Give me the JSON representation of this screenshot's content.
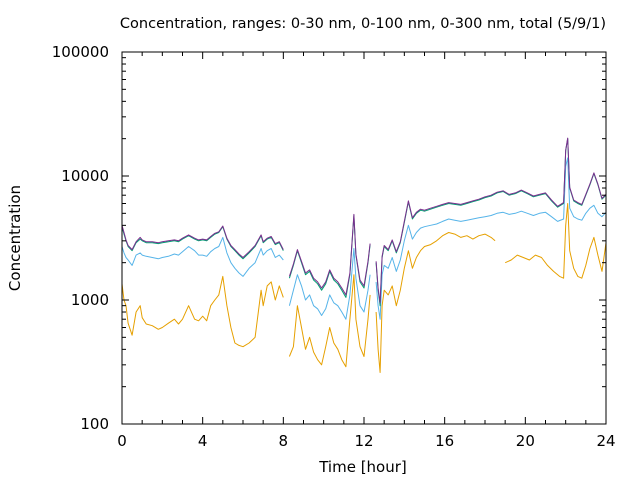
{
  "chart_data": {
    "type": "line",
    "title": "Concentration, ranges: 0-30 nm, 0-100 nm, 0-300 nm, total (5/9/1)",
    "xlabel": "Time [hour]",
    "ylabel": "Concentration",
    "xlim": [
      0,
      24
    ],
    "ylim": [
      100,
      100000
    ],
    "yscale": "log",
    "grid": false,
    "legend": "none",
    "x_ticks": [
      0,
      4,
      8,
      12,
      16,
      20,
      24
    ],
    "x_tick_labels": [
      "0",
      "4",
      "8",
      "12",
      "16",
      "20",
      "24"
    ],
    "y_ticks": [
      100,
      1000,
      10000,
      100000
    ],
    "y_tick_labels": [
      "100",
      "1000",
      "10000",
      "100000"
    ],
    "series": [
      {
        "color": "#e6a000",
        "x": [
          0,
          0.1,
          0.2,
          0.3,
          0.5,
          0.7,
          0.9,
          1.0,
          1.2,
          1.5,
          1.8,
          2.0,
          2.3,
          2.6,
          2.8,
          3.0,
          3.3,
          3.6,
          3.8,
          4.0,
          4.2,
          4.4,
          4.6,
          4.8,
          5.0,
          5.2,
          5.4,
          5.6,
          5.8,
          6.0,
          6.3,
          6.6,
          6.9,
          7.0,
          7.2,
          7.4,
          7.6,
          7.8,
          8.0
        ],
        "y": [
          1350,
          1000,
          900,
          650,
          520,
          800,
          900,
          720,
          640,
          620,
          580,
          600,
          650,
          700,
          640,
          700,
          900,
          700,
          680,
          740,
          680,
          900,
          1000,
          1100,
          1550,
          900,
          600,
          450,
          430,
          420,
          450,
          500,
          1200,
          900,
          1300,
          1400,
          1000,
          1300,
          1050
        ]
      },
      {
        "color": "#e6a000",
        "x": [
          8.3,
          8.5,
          8.7,
          8.9,
          9.1,
          9.3,
          9.5,
          9.7,
          9.9,
          10.1,
          10.3,
          10.5,
          10.7,
          10.9,
          11.1,
          11.3,
          11.5,
          11.6,
          11.8,
          12.0,
          12.2,
          12.3
        ],
        "y": [
          350,
          420,
          900,
          600,
          400,
          500,
          380,
          330,
          300,
          420,
          600,
          450,
          400,
          330,
          290,
          700,
          1600,
          700,
          420,
          350,
          700,
          1100
        ]
      },
      {
        "color": "#e6a000",
        "x": [
          12.6,
          12.7,
          12.8,
          12.9,
          13.0,
          13.2,
          13.4,
          13.6,
          13.8,
          14.0,
          14.2,
          14.4,
          14.6,
          14.8,
          15.0,
          15.3,
          15.6,
          15.9,
          16.2,
          16.5,
          16.8,
          17.1,
          17.4,
          17.7,
          18.0,
          18.3,
          18.5
        ],
        "y": [
          800,
          400,
          260,
          900,
          1200,
          1100,
          1300,
          900,
          1200,
          1800,
          2500,
          1800,
          2200,
          2500,
          2700,
          2800,
          3000,
          3300,
          3500,
          3400,
          3200,
          3300,
          3100,
          3300,
          3400,
          3200,
          3000
        ]
      },
      {
        "color": "#e6a000",
        "x": [
          19.0,
          19.3,
          19.6,
          19.9,
          20.2,
          20.5,
          20.8,
          21.1,
          21.4,
          21.7,
          21.9,
          22.0,
          22.1,
          22.2,
          22.4,
          22.6,
          22.8,
          23.0,
          23.2,
          23.4,
          23.6,
          23.8,
          24.0
        ],
        "y": [
          2000,
          2100,
          2300,
          2200,
          2100,
          2300,
          2200,
          1900,
          1700,
          1550,
          1500,
          4000,
          6000,
          2500,
          1800,
          1550,
          1500,
          1900,
          2600,
          3200,
          2300,
          1700,
          2900
        ]
      },
      {
        "color": "#56b4e9",
        "x": [
          0,
          0.1,
          0.2,
          0.3,
          0.5,
          0.7,
          0.9,
          1.0,
          1.2,
          1.5,
          1.8,
          2.0,
          2.3,
          2.6,
          2.8,
          3.0,
          3.3,
          3.6,
          3.8,
          4.0,
          4.2,
          4.4,
          4.6,
          4.8,
          5.0,
          5.2,
          5.4,
          5.6,
          5.8,
          6.0,
          6.3,
          6.6,
          6.9,
          7.0,
          7.2,
          7.4,
          7.6,
          7.8,
          8.0
        ],
        "y": [
          2700,
          2400,
          2200,
          2100,
          1900,
          2300,
          2400,
          2300,
          2250,
          2200,
          2150,
          2200,
          2250,
          2350,
          2300,
          2450,
          2700,
          2500,
          2300,
          2300,
          2250,
          2450,
          2600,
          2700,
          3200,
          2400,
          2000,
          1800,
          1650,
          1550,
          1800,
          2000,
          2600,
          2300,
          2500,
          2600,
          2200,
          2300,
          2100
        ]
      },
      {
        "color": "#56b4e9",
        "x": [
          8.3,
          8.5,
          8.7,
          8.9,
          9.1,
          9.3,
          9.5,
          9.7,
          9.9,
          10.1,
          10.3,
          10.5,
          10.7,
          10.9,
          11.1,
          11.3,
          11.5,
          11.6,
          11.8,
          12.0,
          12.2,
          12.3
        ],
        "y": [
          900,
          1200,
          1600,
          1300,
          1000,
          1100,
          900,
          850,
          750,
          850,
          1100,
          950,
          900,
          800,
          700,
          1100,
          2600,
          1500,
          900,
          800,
          1200,
          1600
        ]
      },
      {
        "color": "#56b4e9",
        "x": [
          12.6,
          12.7,
          12.8,
          12.9,
          13.0,
          13.2,
          13.4,
          13.6,
          13.8,
          14.0,
          14.2,
          14.4,
          14.6,
          14.8,
          15.0,
          15.3,
          15.6,
          15.9,
          16.2,
          16.5,
          16.8,
          17.1,
          17.4,
          17.7,
          18.0,
          18.3,
          18.6,
          18.9,
          19.2,
          19.5,
          19.8,
          20.1,
          20.4,
          20.7,
          21.0,
          21.3,
          21.6,
          21.9,
          22.0,
          22.1,
          22.2,
          22.4,
          22.6,
          22.8,
          23.0,
          23.2,
          23.4,
          23.6,
          23.8,
          24.0
        ],
        "y": [
          1400,
          900,
          700,
          1600,
          1900,
          1800,
          2200,
          1700,
          2100,
          3000,
          4000,
          3100,
          3500,
          3800,
          3900,
          4000,
          4100,
          4300,
          4500,
          4400,
          4300,
          4400,
          4500,
          4600,
          4700,
          4800,
          5000,
          5100,
          4900,
          5000,
          5200,
          5000,
          4800,
          5000,
          5100,
          4700,
          4300,
          4500,
          12000,
          14000,
          5500,
          4700,
          4500,
          4400,
          5000,
          5500,
          5800,
          5000,
          4700,
          5100
        ]
      },
      {
        "color": "#009e73",
        "x": [
          0,
          0.1,
          0.2,
          0.3,
          0.5,
          0.7,
          0.9,
          1.0,
          1.2,
          1.5,
          1.8,
          2.0,
          2.3,
          2.6,
          2.8,
          3.0,
          3.3,
          3.6,
          3.8,
          4.0,
          4.2,
          4.4,
          4.6,
          4.8,
          5.0,
          5.2,
          5.4,
          5.6,
          5.8,
          6.0,
          6.3,
          6.6,
          6.9,
          7.0,
          7.2,
          7.4,
          7.6,
          7.8,
          8.0
        ],
        "y": [
          3900,
          3400,
          3000,
          2700,
          2500,
          2900,
          3100,
          3000,
          2900,
          2900,
          2850,
          2900,
          2950,
          3000,
          2950,
          3100,
          3300,
          3100,
          3000,
          3050,
          3000,
          3200,
          3400,
          3500,
          3900,
          3100,
          2700,
          2500,
          2300,
          2150,
          2400,
          2700,
          3300,
          2900,
          3100,
          3200,
          2800,
          2900,
          2500
        ]
      },
      {
        "color": "#009e73",
        "x": [
          8.3,
          8.5,
          8.7,
          8.9,
          9.1,
          9.3,
          9.5,
          9.7,
          9.9,
          10.1,
          10.3,
          10.5,
          10.7,
          10.9,
          11.1,
          11.3,
          11.5,
          11.6,
          11.8,
          12.0,
          12.2,
          12.3
        ],
        "y": [
          1500,
          1900,
          2500,
          2000,
          1600,
          1700,
          1450,
          1350,
          1200,
          1350,
          1700,
          1450,
          1350,
          1200,
          1050,
          1600,
          4800,
          2300,
          1400,
          1250,
          2000,
          2800
        ]
      },
      {
        "color": "#009e73",
        "x": [
          12.6,
          12.7,
          12.8,
          12.9,
          13.0,
          13.2,
          13.4,
          13.6,
          13.8,
          14.0,
          14.2,
          14.4,
          14.6,
          14.8,
          15.0,
          15.3,
          15.6,
          15.9,
          16.2,
          16.5,
          16.8,
          17.1,
          17.4,
          17.7,
          18.0,
          18.3,
          18.6,
          18.9,
          19.2,
          19.5,
          19.8,
          20.1,
          20.4,
          20.7,
          21.0,
          21.3,
          21.6,
          21.9,
          22.0,
          22.1,
          22.2,
          22.4,
          22.6,
          22.8,
          23.0,
          23.2,
          23.4,
          23.6,
          23.8,
          24.0
        ],
        "y": [
          2000,
          1200,
          900,
          2200,
          2700,
          2500,
          3000,
          2400,
          2900,
          4200,
          6200,
          4500,
          5000,
          5300,
          5200,
          5400,
          5600,
          5800,
          6000,
          5900,
          5800,
          6000,
          6200,
          6400,
          6700,
          6900,
          7300,
          7500,
          7000,
          7200,
          7600,
          7200,
          6800,
          7000,
          7200,
          6300,
          5600,
          6000,
          16000,
          20000,
          8000,
          6300,
          6000,
          5800,
          7000,
          8500,
          10500,
          8500,
          6500,
          7000
        ]
      },
      {
        "color": "#7b2e8e",
        "x": [
          0,
          0.1,
          0.2,
          0.3,
          0.5,
          0.7,
          0.9,
          1.0,
          1.2,
          1.5,
          1.8,
          2.0,
          2.3,
          2.6,
          2.8,
          3.0,
          3.3,
          3.6,
          3.8,
          4.0,
          4.2,
          4.4,
          4.6,
          4.8,
          5.0,
          5.2,
          5.4,
          5.6,
          5.8,
          6.0,
          6.3,
          6.6,
          6.9,
          7.0,
          7.2,
          7.4,
          7.6,
          7.8,
          8.0
        ],
        "y": [
          4000,
          3500,
          3050,
          2750,
          2550,
          2950,
          3200,
          3050,
          2950,
          2950,
          2900,
          2950,
          3000,
          3050,
          3000,
          3150,
          3350,
          3150,
          3050,
          3100,
          3050,
          3250,
          3450,
          3550,
          3950,
          3150,
          2750,
          2550,
          2350,
          2200,
          2450,
          2750,
          3350,
          2950,
          3150,
          3250,
          2850,
          2950,
          2550
        ]
      },
      {
        "color": "#7b2e8e",
        "x": [
          8.3,
          8.5,
          8.7,
          8.9,
          9.1,
          9.3,
          9.5,
          9.7,
          9.9,
          10.1,
          10.3,
          10.5,
          10.7,
          10.9,
          11.1,
          11.3,
          11.5,
          11.6,
          11.8,
          12.0,
          12.2,
          12.3
        ],
        "y": [
          1550,
          1950,
          2550,
          2050,
          1650,
          1750,
          1500,
          1400,
          1250,
          1400,
          1750,
          1500,
          1400,
          1250,
          1100,
          1650,
          4900,
          2350,
          1450,
          1300,
          2050,
          2850
        ]
      },
      {
        "color": "#7b2e8e",
        "x": [
          12.6,
          12.7,
          12.8,
          12.9,
          13.0,
          13.2,
          13.4,
          13.6,
          13.8,
          14.0,
          14.2,
          14.4,
          14.6,
          14.8,
          15.0,
          15.3,
          15.6,
          15.9,
          16.2,
          16.5,
          16.8,
          17.1,
          17.4,
          17.7,
          18.0,
          18.3,
          18.6,
          18.9,
          19.2,
          19.5,
          19.8,
          20.1,
          20.4,
          20.7,
          21.0,
          21.3,
          21.6,
          21.9,
          22.0,
          22.1,
          22.2,
          22.4,
          22.6,
          22.8,
          23.0,
          23.2,
          23.4,
          23.6,
          23.8,
          24.0
        ],
        "y": [
          2050,
          1250,
          950,
          2250,
          2750,
          2550,
          3050,
          2450,
          2950,
          4300,
          6300,
          4600,
          5100,
          5400,
          5300,
          5500,
          5700,
          5900,
          6100,
          6000,
          5900,
          6100,
          6300,
          6500,
          6800,
          7000,
          7400,
          7600,
          7100,
          7300,
          7700,
          7300,
          6900,
          7100,
          7300,
          6400,
          5700,
          6100,
          16200,
          20200,
          8100,
          6400,
          6100,
          5900,
          7100,
          8600,
          10600,
          8600,
          6600,
          7100
        ]
      }
    ]
  }
}
